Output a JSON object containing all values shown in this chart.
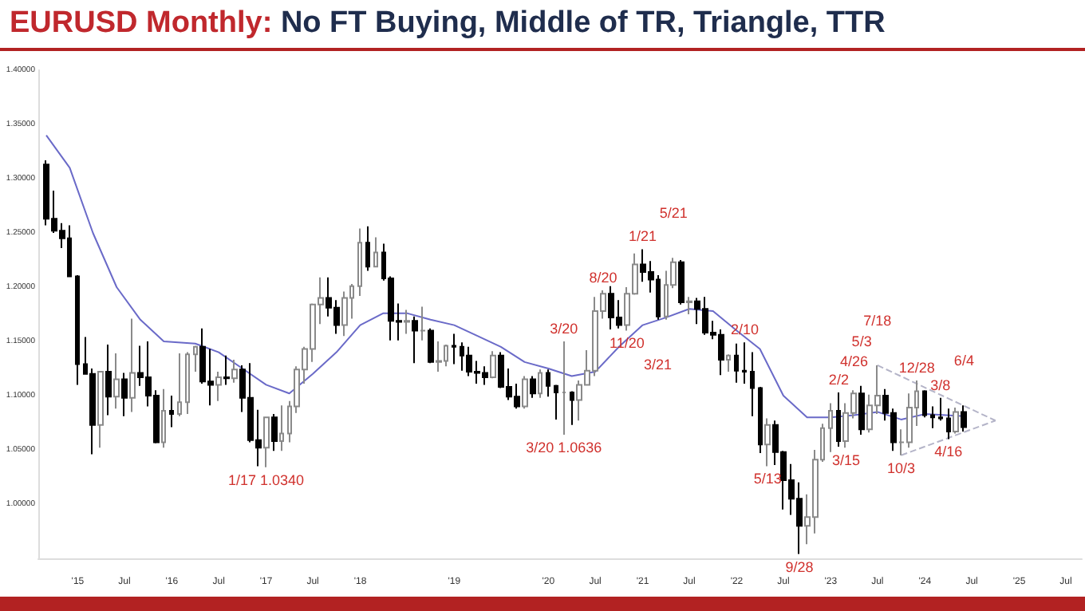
{
  "chart_data": {
    "type": "candlestick",
    "title": "EURUSD Monthly:",
    "subtitle": "No FT Buying, Middle of TR, Triangle, TTR",
    "x": [
      "2014-09",
      "2014-10",
      "2014-11",
      "2014-12",
      "2015-01",
      "2015-02",
      "2015-03",
      "2015-04",
      "2015-05",
      "2015-06",
      "2015-07",
      "2015-08",
      "2015-09",
      "2015-10",
      "2015-11",
      "2015-12",
      "2016-01",
      "2016-02",
      "2016-03",
      "2016-04",
      "2016-05",
      "2016-06",
      "2016-07",
      "2016-08",
      "2016-09",
      "2016-10",
      "2016-11",
      "2016-12",
      "2017-01",
      "2017-02",
      "2017-03",
      "2017-04",
      "2017-05",
      "2017-06",
      "2017-07",
      "2017-08",
      "2017-09",
      "2017-10",
      "2017-11",
      "2017-12",
      "2018-01",
      "2018-02",
      "2018-03",
      "2018-04",
      "2018-05",
      "2018-06",
      "2018-07",
      "2018-08",
      "2018-09",
      "2018-10",
      "2018-11",
      "2018-12",
      "2019-01",
      "2019-02",
      "2019-03",
      "2019-04",
      "2019-05",
      "2019-06",
      "2019-07",
      "2019-08",
      "2019-09",
      "2019-10",
      "2019-11",
      "2019-12",
      "2020-01",
      "2020-02",
      "2020-03",
      "2020-04",
      "2020-05",
      "2020-06",
      "2020-07",
      "2020-08",
      "2020-09",
      "2020-10",
      "2020-11",
      "2020-12",
      "2021-01",
      "2021-02",
      "2021-03",
      "2021-04",
      "2021-05",
      "2021-06",
      "2021-07",
      "2021-08",
      "2021-09",
      "2021-10",
      "2021-11",
      "2021-12",
      "2022-01",
      "2022-02",
      "2022-03",
      "2022-04",
      "2022-05",
      "2022-06",
      "2022-07",
      "2022-08",
      "2022-09",
      "2022-10",
      "2022-11",
      "2022-12",
      "2023-01",
      "2023-02",
      "2023-03",
      "2023-04",
      "2023-05",
      "2023-06",
      "2023-07",
      "2023-08",
      "2023-09",
      "2023-10",
      "2023-11",
      "2023-12",
      "2024-01",
      "2024-02",
      "2024-03",
      "2024-04",
      "2024-05",
      "2024-06"
    ],
    "ohlc": [
      [
        1.313,
        1.317,
        1.257,
        1.263
      ],
      [
        1.263,
        1.289,
        1.25,
        1.252
      ],
      [
        1.252,
        1.259,
        1.236,
        1.245
      ],
      [
        1.245,
        1.257,
        1.21,
        1.21
      ],
      [
        1.21,
        1.211,
        1.11,
        1.129
      ],
      [
        1.129,
        1.154,
        1.12,
        1.12
      ],
      [
        1.12,
        1.125,
        1.046,
        1.073
      ],
      [
        1.073,
        1.122,
        1.052,
        1.122
      ],
      [
        1.122,
        1.147,
        1.082,
        1.099
      ],
      [
        1.099,
        1.139,
        1.088,
        1.115
      ],
      [
        1.115,
        1.121,
        1.081,
        1.098
      ],
      [
        1.098,
        1.171,
        1.085,
        1.121
      ],
      [
        1.121,
        1.146,
        1.109,
        1.117
      ],
      [
        1.117,
        1.15,
        1.09,
        1.1
      ],
      [
        1.1,
        1.105,
        1.056,
        1.057
      ],
      [
        1.057,
        1.106,
        1.052,
        1.086
      ],
      [
        1.086,
        1.1,
        1.071,
        1.083
      ],
      [
        1.083,
        1.139,
        1.081,
        1.094
      ],
      [
        1.094,
        1.14,
        1.083,
        1.138
      ],
      [
        1.138,
        1.146,
        1.122,
        1.145
      ],
      [
        1.145,
        1.162,
        1.111,
        1.113
      ],
      [
        1.113,
        1.143,
        1.091,
        1.11
      ],
      [
        1.11,
        1.122,
        1.095,
        1.117
      ],
      [
        1.117,
        1.137,
        1.11,
        1.116
      ],
      [
        1.116,
        1.133,
        1.112,
        1.124
      ],
      [
        1.124,
        1.128,
        1.085,
        1.098
      ],
      [
        1.098,
        1.13,
        1.057,
        1.059
      ],
      [
        1.059,
        1.087,
        1.035,
        1.052
      ],
      [
        1.052,
        1.08,
        1.034,
        1.08
      ],
      [
        1.08,
        1.083,
        1.049,
        1.058
      ],
      [
        1.058,
        1.091,
        1.049,
        1.065
      ],
      [
        1.065,
        1.095,
        1.057,
        1.09
      ],
      [
        1.09,
        1.127,
        1.084,
        1.124
      ],
      [
        1.124,
        1.145,
        1.111,
        1.143
      ],
      [
        1.143,
        1.185,
        1.131,
        1.184
      ],
      [
        1.184,
        1.209,
        1.166,
        1.19
      ],
      [
        1.19,
        1.209,
        1.173,
        1.181
      ],
      [
        1.181,
        1.188,
        1.157,
        1.165
      ],
      [
        1.165,
        1.196,
        1.155,
        1.19
      ],
      [
        1.19,
        1.203,
        1.171,
        1.201
      ],
      [
        1.201,
        1.254,
        1.192,
        1.241
      ],
      [
        1.241,
        1.256,
        1.215,
        1.219
      ],
      [
        1.219,
        1.246,
        1.219,
        1.232
      ],
      [
        1.232,
        1.24,
        1.206,
        1.208
      ],
      [
        1.208,
        1.21,
        1.151,
        1.169
      ],
      [
        1.169,
        1.185,
        1.151,
        1.168
      ],
      [
        1.168,
        1.179,
        1.157,
        1.169
      ],
      [
        1.169,
        1.173,
        1.13,
        1.16
      ],
      [
        1.16,
        1.182,
        1.151,
        1.16
      ],
      [
        1.16,
        1.162,
        1.13,
        1.131
      ],
      [
        1.131,
        1.15,
        1.122,
        1.132
      ],
      [
        1.132,
        1.147,
        1.127,
        1.146
      ],
      [
        1.146,
        1.157,
        1.129,
        1.145
      ],
      [
        1.145,
        1.149,
        1.123,
        1.137
      ],
      [
        1.137,
        1.145,
        1.118,
        1.122
      ],
      [
        1.122,
        1.132,
        1.111,
        1.121
      ],
      [
        1.121,
        1.127,
        1.11,
        1.117
      ],
      [
        1.117,
        1.141,
        1.116,
        1.137
      ],
      [
        1.137,
        1.14,
        1.107,
        1.108
      ],
      [
        1.108,
        1.125,
        1.096,
        1.099
      ],
      [
        1.099,
        1.111,
        1.088,
        1.09
      ],
      [
        1.09,
        1.118,
        1.088,
        1.115
      ],
      [
        1.115,
        1.118,
        1.098,
        1.102
      ],
      [
        1.102,
        1.124,
        1.098,
        1.121
      ],
      [
        1.121,
        1.124,
        1.099,
        1.109
      ],
      [
        1.109,
        1.11,
        1.078,
        1.103
      ],
      [
        1.103,
        1.15,
        1.064,
        1.103
      ],
      [
        1.103,
        1.104,
        1.073,
        1.096
      ],
      [
        1.096,
        1.114,
        1.077,
        1.11
      ],
      [
        1.11,
        1.142,
        1.11,
        1.123
      ],
      [
        1.123,
        1.191,
        1.118,
        1.178
      ],
      [
        1.178,
        1.197,
        1.171,
        1.194
      ],
      [
        1.194,
        1.201,
        1.161,
        1.172
      ],
      [
        1.172,
        1.188,
        1.162,
        1.165
      ],
      [
        1.165,
        1.2,
        1.16,
        1.194
      ],
      [
        1.194,
        1.231,
        1.193,
        1.221
      ],
      [
        1.221,
        1.235,
        1.205,
        1.214
      ],
      [
        1.214,
        1.224,
        1.195,
        1.207
      ],
      [
        1.207,
        1.211,
        1.17,
        1.173
      ],
      [
        1.173,
        1.215,
        1.17,
        1.202
      ],
      [
        1.202,
        1.227,
        1.199,
        1.223
      ],
      [
        1.223,
        1.225,
        1.184,
        1.186
      ],
      [
        1.186,
        1.191,
        1.175,
        1.187
      ],
      [
        1.187,
        1.19,
        1.166,
        1.18
      ],
      [
        1.18,
        1.191,
        1.156,
        1.158
      ],
      [
        1.158,
        1.169,
        1.152,
        1.156
      ],
      [
        1.156,
        1.161,
        1.119,
        1.133
      ],
      [
        1.133,
        1.138,
        1.122,
        1.137
      ],
      [
        1.137,
        1.148,
        1.112,
        1.123
      ],
      [
        1.123,
        1.149,
        1.111,
        1.122
      ],
      [
        1.122,
        1.14,
        1.081,
        1.107
      ],
      [
        1.107,
        1.108,
        1.047,
        1.055
      ],
      [
        1.055,
        1.079,
        1.035,
        1.073
      ],
      [
        1.073,
        1.077,
        1.036,
        1.048
      ],
      [
        1.048,
        1.049,
        0.995,
        1.022
      ],
      [
        1.022,
        1.037,
        0.99,
        1.005
      ],
      [
        1.005,
        1.02,
        0.954,
        0.98
      ],
      [
        0.98,
        1.009,
        0.963,
        0.988
      ],
      [
        0.988,
        1.05,
        0.973,
        1.041
      ],
      [
        1.041,
        1.074,
        1.039,
        1.07
      ],
      [
        1.07,
        1.093,
        1.048,
        1.086
      ],
      [
        1.086,
        1.103,
        1.053,
        1.058
      ],
      [
        1.058,
        1.093,
        1.052,
        1.084
      ],
      [
        1.084,
        1.105,
        1.079,
        1.102
      ],
      [
        1.102,
        1.109,
        1.064,
        1.069
      ],
      [
        1.069,
        1.101,
        1.066,
        1.091
      ],
      [
        1.091,
        1.128,
        1.083,
        1.1
      ],
      [
        1.1,
        1.106,
        1.077,
        1.084
      ],
      [
        1.084,
        1.088,
        1.049,
        1.057
      ],
      [
        1.057,
        1.069,
        1.045,
        1.057
      ],
      [
        1.057,
        1.102,
        1.052,
        1.089
      ],
      [
        1.089,
        1.114,
        1.072,
        1.104
      ],
      [
        1.104,
        1.105,
        1.08,
        1.082
      ],
      [
        1.082,
        1.09,
        1.07,
        1.08
      ],
      [
        1.08,
        1.098,
        1.077,
        1.079
      ],
      [
        1.079,
        1.088,
        1.06,
        1.067
      ],
      [
        1.067,
        1.089,
        1.065,
        1.085
      ],
      [
        1.085,
        1.091,
        1.067,
        1.071
      ]
    ],
    "series": [
      {
        "type": "line",
        "color": "#6a6ac8",
        "line_style": "solid",
        "x": [
          "2014-09",
          "2014-12",
          "2015-03",
          "2015-06",
          "2015-09",
          "2015-12",
          "2016-04",
          "2016-07",
          "2016-10",
          "2017-01",
          "2017-04",
          "2017-07",
          "2017-10",
          "2018-01",
          "2018-04",
          "2018-07",
          "2018-10",
          "2019-01",
          "2019-04",
          "2019-07",
          "2019-10",
          "2020-01",
          "2020-04",
          "2020-07",
          "2020-10",
          "2021-01",
          "2021-04",
          "2021-07",
          "2021-10",
          "2022-01",
          "2022-04",
          "2022-07",
          "2022-10",
          "2023-01",
          "2023-04",
          "2023-07",
          "2023-10",
          "2024-01",
          "2024-06"
        ],
        "values": [
          1.34,
          1.31,
          1.25,
          1.2,
          1.17,
          1.15,
          1.148,
          1.14,
          1.125,
          1.11,
          1.102,
          1.12,
          1.14,
          1.165,
          1.176,
          1.176,
          1.17,
          1.165,
          1.155,
          1.145,
          1.131,
          1.125,
          1.118,
          1.122,
          1.145,
          1.165,
          1.172,
          1.18,
          1.178,
          1.16,
          1.143,
          1.1,
          1.08,
          1.08,
          1.082,
          1.085,
          1.078,
          1.083,
          1.081
        ]
      },
      {
        "type": "line",
        "color": "#b4b4c8",
        "line_style": "dashed",
        "x": [
          "2023-07",
          "2024-10"
        ],
        "values": [
          1.128,
          1.077
        ]
      },
      {
        "type": "line",
        "color": "#b4b4c8",
        "line_style": "dashed",
        "x": [
          "2023-10",
          "2024-10"
        ],
        "values": [
          1.045,
          1.077
        ]
      }
    ],
    "marker": "none",
    "grid": false,
    "xlim": [
      "2014-08",
      "2025-09"
    ],
    "xticks": [
      {
        "value": "2015-01",
        "label": "'15"
      },
      {
        "value": "2015-07",
        "label": "Jul"
      },
      {
        "value": "2016-01",
        "label": "'16"
      },
      {
        "value": "2016-07",
        "label": "Jul"
      },
      {
        "value": "2017-01",
        "label": "'17"
      },
      {
        "value": "2017-07",
        "label": "Jul"
      },
      {
        "value": "2018-01",
        "label": "'18"
      },
      {
        "value": "2019-01",
        "label": "'19"
      },
      {
        "value": "2020-01",
        "label": "'20"
      },
      {
        "value": "2020-07",
        "label": "Jul"
      },
      {
        "value": "2021-01",
        "label": "'21"
      },
      {
        "value": "2021-07",
        "label": "Jul"
      },
      {
        "value": "2022-01",
        "label": "'22"
      },
      {
        "value": "2022-07",
        "label": "Jul"
      },
      {
        "value": "2023-01",
        "label": "'23"
      },
      {
        "value": "2023-07",
        "label": "Jul"
      },
      {
        "value": "2024-01",
        "label": "'24"
      },
      {
        "value": "2024-07",
        "label": "Jul"
      },
      {
        "value": "2025-01",
        "label": "'25"
      },
      {
        "value": "2025-07",
        "label": "Jul"
      }
    ],
    "ylim": [
      0.95,
      1.4
    ],
    "yticks": [
      {
        "value": 1.0,
        "label": "1.00000"
      },
      {
        "value": 1.05,
        "label": "1.05000"
      },
      {
        "value": 1.1,
        "label": "1.10000"
      },
      {
        "value": 1.15,
        "label": "1.15000"
      },
      {
        "value": 1.2,
        "label": "1.20000"
      },
      {
        "value": 1.25,
        "label": "1.25000"
      },
      {
        "value": 1.3,
        "label": "1.30000"
      },
      {
        "value": 1.35,
        "label": "1.35000"
      },
      {
        "value": 1.4,
        "label": "1.40000"
      }
    ],
    "annotations": [
      {
        "text": "1/17 1.0340",
        "x": "2017-01",
        "y": 1.034
      },
      {
        "text": "3/20 1.0636",
        "x": "2020-03",
        "y": 1.064
      },
      {
        "text": "3/20",
        "x": "2020-03",
        "y": 1.15
      },
      {
        "text": "8/20",
        "x": "2020-08",
        "y": 1.197
      },
      {
        "text": "11/20",
        "x": "2020-11",
        "y": 1.16
      },
      {
        "text": "1/21",
        "x": "2021-01",
        "y": 1.235
      },
      {
        "text": "3/21",
        "x": "2021-03",
        "y": 1.17
      },
      {
        "text": "5/21",
        "x": "2021-05",
        "y": 1.227
      },
      {
        "text": "2/10",
        "x": "2022-02",
        "y": 1.149
      },
      {
        "text": "5/13",
        "x": "2022-05",
        "y": 1.035
      },
      {
        "text": "9/28",
        "x": "2022-09",
        "y": 0.954
      },
      {
        "text": "2/2",
        "x": "2023-02",
        "y": 1.103
      },
      {
        "text": "4/26",
        "x": "2023-04",
        "y": 1.105
      },
      {
        "text": "5/3",
        "x": "2023-05",
        "y": 1.109
      },
      {
        "text": "7/18",
        "x": "2023-07",
        "y": 1.128
      },
      {
        "text": "3/15",
        "x": "2023-03",
        "y": 1.052
      },
      {
        "text": "10/3",
        "x": "2023-10",
        "y": 1.045
      },
      {
        "text": "12/28",
        "x": "2023-12",
        "y": 1.114
      },
      {
        "text": "3/8",
        "x": "2024-03",
        "y": 1.098
      },
      {
        "text": "6/4",
        "x": "2024-06",
        "y": 1.091
      },
      {
        "text": "4/16",
        "x": "2024-04",
        "y": 1.06
      }
    ]
  }
}
